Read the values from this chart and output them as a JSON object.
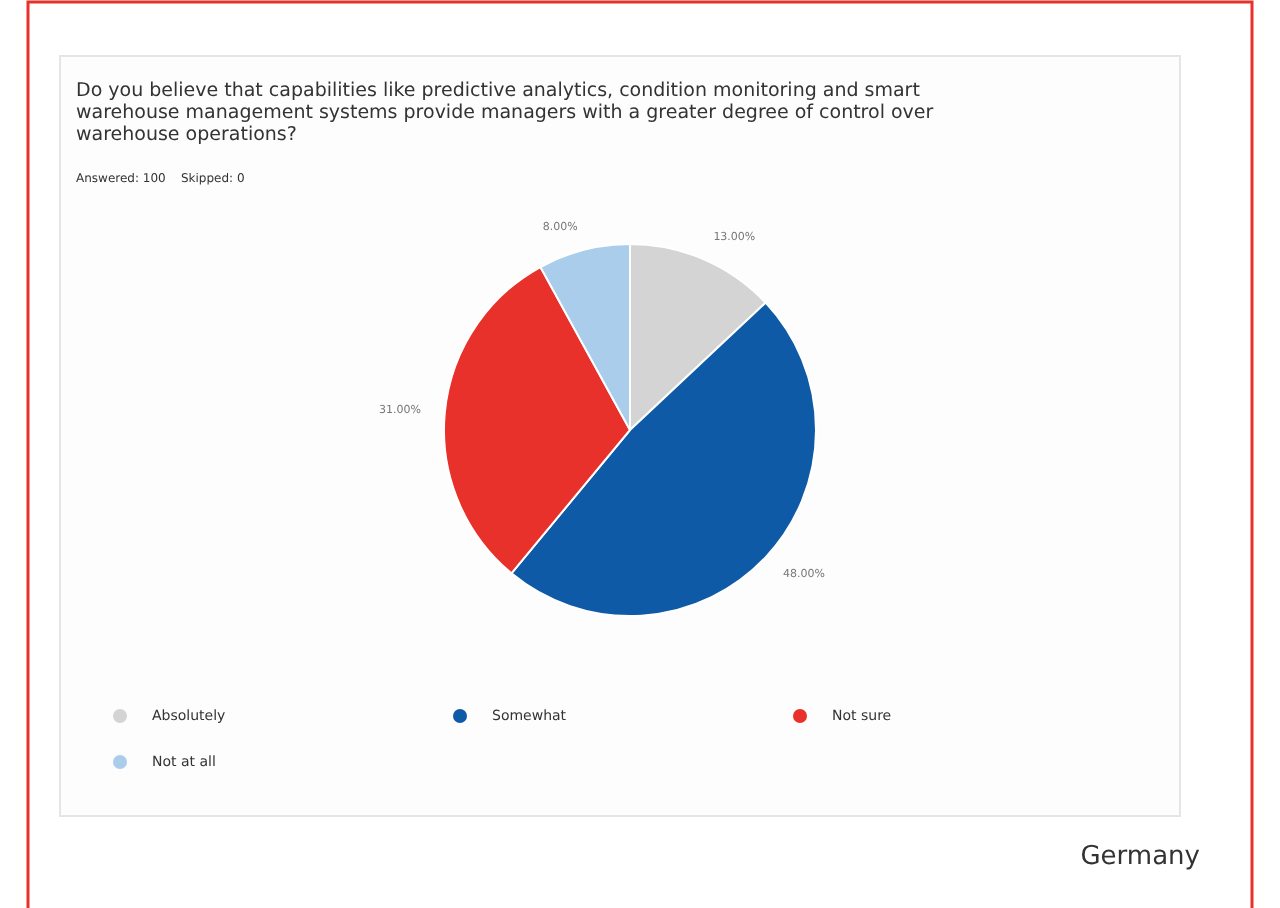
{
  "chart_data": {
    "type": "pie",
    "title": "Do you believe that capabilities like predictive analytics, condition monitoring and smart warehouse management systems provide managers with a greater degree of control over warehouse operations?",
    "subtitle": "Answered: 100    Skipped: 0",
    "categories": [
      "Absolutely",
      "Somewhat",
      "Not sure",
      "Not at all"
    ],
    "values": [
      13,
      48,
      31,
      8
    ],
    "value_labels": [
      "13.00%",
      "48.00%",
      "31.00%",
      "8.00%"
    ],
    "colors": [
      "#d4d4d4",
      "#0f5aa6",
      "#e8312a",
      "#a9cdea"
    ],
    "legend": "bottom",
    "annotations": [
      "Germany"
    ]
  }
}
